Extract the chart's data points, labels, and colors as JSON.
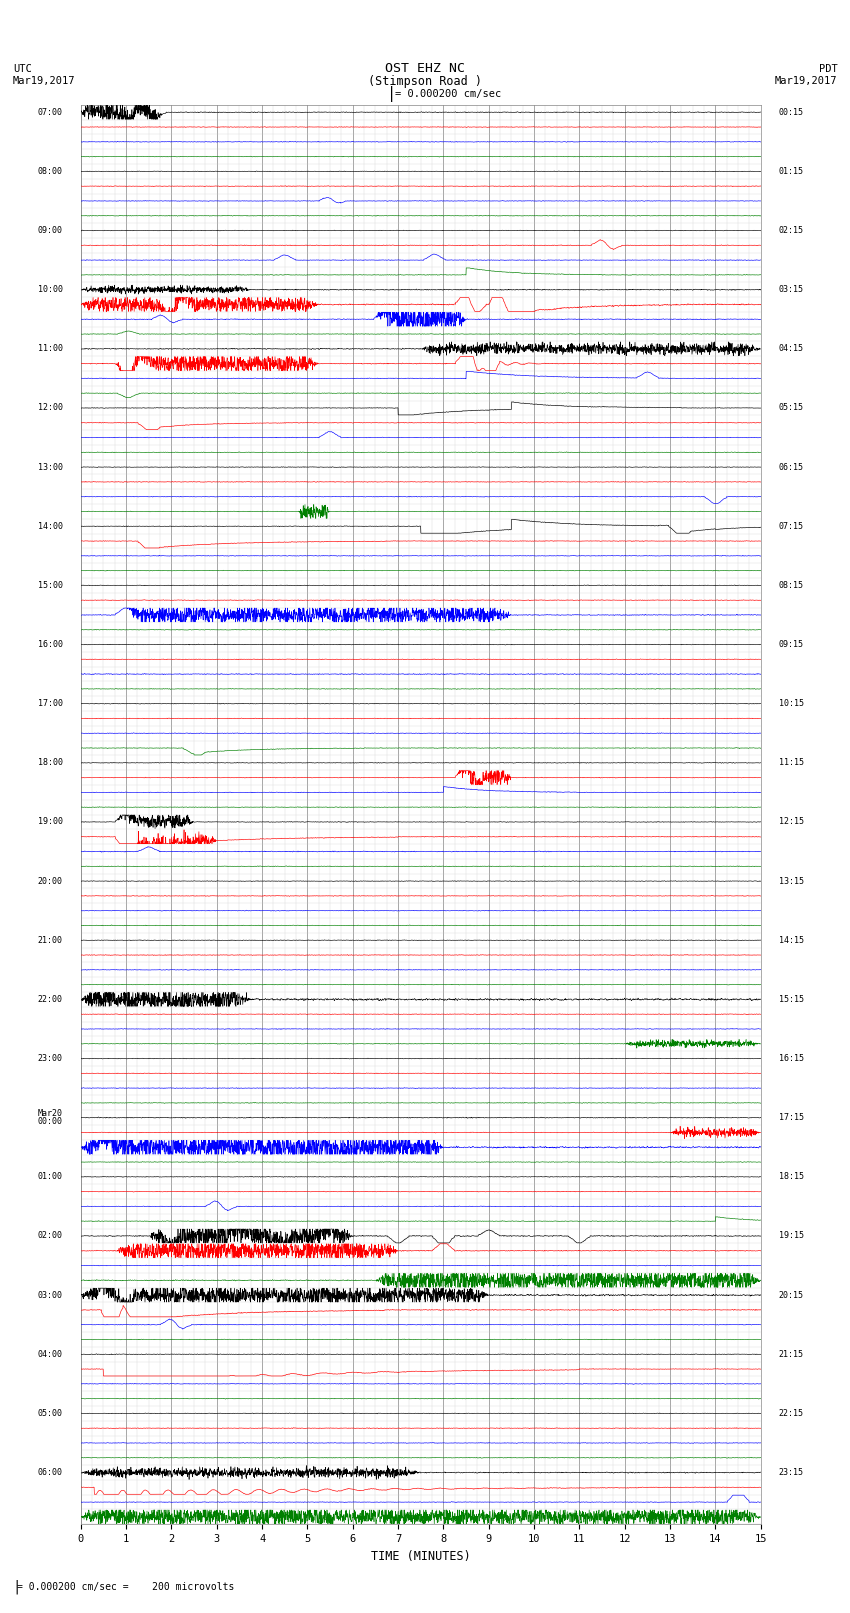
{
  "title_line1": "OST EHZ NC",
  "title_line2": "(Stimpson Road )",
  "title_line3": "I = 0.000200 cm/sec",
  "label_utc": "UTC",
  "label_date_left": "Mar19,2017",
  "label_pdt": "PDT",
  "label_date_right": "Mar19,2017",
  "xlabel": "TIME (MINUTES)",
  "footer": "= 0.000200 cm/sec =    200 microvolts",
  "background_color": "#ffffff",
  "row_colors": [
    "black",
    "red",
    "blue",
    "green"
  ]
}
